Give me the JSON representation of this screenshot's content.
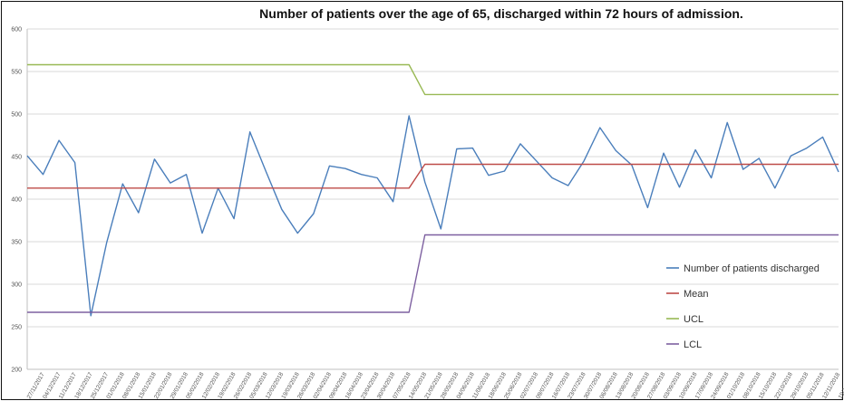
{
  "chart_data": {
    "type": "line",
    "title": "Number of patients over the age of 65, discharged within 72 hours of admission.",
    "xlabel": "",
    "ylabel": "",
    "ylim": [
      200,
      600
    ],
    "yticks": [
      200,
      250,
      300,
      350,
      400,
      450,
      500,
      550,
      600
    ],
    "grid": "horizontal",
    "legend_position": "right",
    "x": [
      "27/11/2017",
      "04/12/2017",
      "11/12/2017",
      "18/12/2017",
      "25/12/2017",
      "01/01/2018",
      "08/01/2018",
      "15/01/2018",
      "22/01/2018",
      "29/01/2018",
      "05/02/2018",
      "12/02/2018",
      "19/02/2018",
      "26/02/2018",
      "05/03/2018",
      "12/03/2018",
      "19/03/2018",
      "26/03/2018",
      "02/04/2018",
      "09/04/2018",
      "16/04/2018",
      "23/04/2018",
      "30/04/2018",
      "07/05/2018",
      "14/05/2018",
      "21/05/2018",
      "28/05/2018",
      "04/06/2018",
      "11/06/2018",
      "18/06/2018",
      "25/06/2018",
      "02/07/2018",
      "09/07/2018",
      "16/07/2018",
      "23/07/2018",
      "30/07/2018",
      "06/08/2018",
      "13/08/2018",
      "20/08/2018",
      "27/08/2018",
      "03/09/2018",
      "10/09/2018",
      "17/09/2018",
      "24/09/2018",
      "01/10/2018",
      "08/10/2018",
      "15/10/2018",
      "22/10/2018",
      "29/10/2018",
      "05/11/2018",
      "12/11/2018",
      "19/11/2018"
    ],
    "series": [
      {
        "name": "Number of patients discharged",
        "color": "#4a7ebb",
        "values": [
          451,
          429,
          469,
          443,
          263,
          349,
          418,
          384,
          447,
          419,
          429,
          360,
          413,
          377,
          479,
          433,
          388,
          360,
          383,
          439,
          436,
          429,
          425,
          397,
          498,
          420,
          365,
          459,
          460,
          428,
          433,
          465,
          445,
          425,
          416,
          445,
          484,
          457,
          440,
          390,
          454,
          414,
          458,
          425,
          490,
          435,
          448,
          413,
          451,
          460,
          473,
          432
        ]
      },
      {
        "name": "Mean",
        "color": "#be4b48",
        "values": [
          413,
          413,
          413,
          413,
          413,
          413,
          413,
          413,
          413,
          413,
          413,
          413,
          413,
          413,
          413,
          413,
          413,
          413,
          413,
          413,
          413,
          413,
          413,
          413,
          413,
          441,
          441,
          441,
          441,
          441,
          441,
          441,
          441,
          441,
          441,
          441,
          441,
          441,
          441,
          441,
          441,
          441,
          441,
          441,
          441,
          441,
          441,
          441,
          441,
          441,
          441,
          441
        ]
      },
      {
        "name": "UCL",
        "color": "#98b954",
        "values": [
          558,
          558,
          558,
          558,
          558,
          558,
          558,
          558,
          558,
          558,
          558,
          558,
          558,
          558,
          558,
          558,
          558,
          558,
          558,
          558,
          558,
          558,
          558,
          558,
          558,
          523,
          523,
          523,
          523,
          523,
          523,
          523,
          523,
          523,
          523,
          523,
          523,
          523,
          523,
          523,
          523,
          523,
          523,
          523,
          523,
          523,
          523,
          523,
          523,
          523,
          523,
          523
        ]
      },
      {
        "name": "LCL",
        "color": "#7d60a0",
        "values": [
          267,
          267,
          267,
          267,
          267,
          267,
          267,
          267,
          267,
          267,
          267,
          267,
          267,
          267,
          267,
          267,
          267,
          267,
          267,
          267,
          267,
          267,
          267,
          267,
          267,
          358,
          358,
          358,
          358,
          358,
          358,
          358,
          358,
          358,
          358,
          358,
          358,
          358,
          358,
          358,
          358,
          358,
          358,
          358,
          358,
          358,
          358,
          358,
          358,
          358,
          358,
          358
        ]
      }
    ]
  }
}
